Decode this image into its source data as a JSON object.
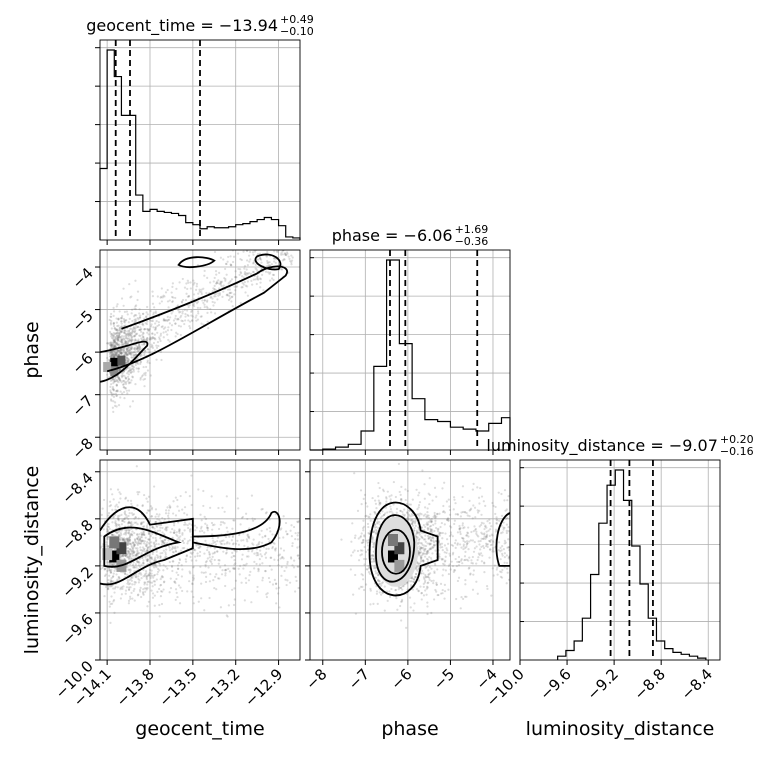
{
  "chart_data": {
    "type": "corner",
    "parameters": [
      "geocent_time",
      "phase",
      "luminosity_distance"
    ],
    "titles": {
      "geocent_time": {
        "prefix": "geocent_time = ",
        "median": "−13.94",
        "upper": "+0.49",
        "lower": "−0.10"
      },
      "phase": {
        "prefix": "phase = ",
        "median": "−6.06",
        "upper": "+1.69",
        "lower": "−0.36"
      },
      "luminosity_distance": {
        "prefix": "luminosity_distance = ",
        "median": "−9.07",
        "upper": "+0.20",
        "lower": "−0.16"
      }
    },
    "axes": {
      "geocent_time": {
        "label": "geocent_time",
        "range": [
          -14.15,
          -12.75
        ],
        "ticks": [
          -14.1,
          -13.8,
          -13.5,
          -13.2,
          -12.9
        ],
        "tick_labels": [
          "−14.1",
          "−13.8",
          "−13.5",
          "−13.2",
          "−12.9"
        ]
      },
      "phase": {
        "label": "phase",
        "range": [
          -8.3,
          -3.6
        ],
        "ticks": [
          -8,
          -7,
          -6,
          -5,
          -4
        ],
        "tick_labels": [
          "−8",
          "−7",
          "−6",
          "−5",
          "−4"
        ]
      },
      "luminosity_distance": {
        "label": "luminosity_distance",
        "range": [
          -10.0,
          -8.3
        ],
        "ticks": [
          -10.0,
          -9.6,
          -9.2,
          -8.8,
          -8.4
        ],
        "tick_labels": [
          "−10.0",
          "−9.6",
          "−9.2",
          "−8.8",
          "−8.4"
        ]
      }
    },
    "quantiles": {
      "geocent_time": [
        -14.04,
        -13.94,
        -13.45
      ],
      "phase": [
        -6.42,
        -6.06,
        -4.37
      ],
      "luminosity_distance": [
        -9.23,
        -9.07,
        -8.87
      ]
    },
    "histograms": {
      "geocent_time": {
        "edges": [
          -14.15,
          -14.1,
          -14.05,
          -14.0,
          -13.95,
          -13.9,
          -13.85,
          -13.8,
          -13.75,
          -13.7,
          -13.65,
          -13.6,
          -13.55,
          -13.5,
          -13.45,
          -13.4,
          -13.35,
          -13.3,
          -13.25,
          -13.2,
          -13.15,
          -13.1,
          -13.05,
          -13.0,
          -12.95,
          -12.9,
          -12.85,
          -12.8,
          -12.75
        ],
        "counts": [
          0.35,
          0.93,
          0.8,
          0.61,
          0.61,
          0.22,
          0.14,
          0.15,
          0.14,
          0.135,
          0.13,
          0.12,
          0.085,
          0.075,
          0.055,
          0.065,
          0.06,
          0.06,
          0.065,
          0.075,
          0.08,
          0.09,
          0.1,
          0.11,
          0.1,
          0.07,
          0.015,
          0.01
        ]
      },
      "phase": {
        "edges": [
          -8.3,
          -8.0,
          -7.7,
          -7.4,
          -7.1,
          -6.8,
          -6.5,
          -6.2,
          -5.9,
          -5.6,
          -5.3,
          -5.0,
          -4.7,
          -4.4,
          -4.1,
          -3.8,
          -3.6
        ],
        "counts": [
          0.0,
          0.005,
          0.015,
          0.03,
          0.1,
          0.44,
          1.0,
          0.56,
          0.27,
          0.16,
          0.15,
          0.12,
          0.11,
          0.1,
          0.14,
          0.17
        ]
      },
      "luminosity_distance": {
        "edges": [
          -9.68,
          -9.61,
          -9.54,
          -9.47,
          -9.4,
          -9.33,
          -9.26,
          -9.19,
          -9.12,
          -9.05,
          -8.98,
          -8.91,
          -8.84,
          -8.77,
          -8.7,
          -8.63,
          -8.56,
          -8.49,
          -8.42
        ],
        "counts": [
          0.02,
          0.05,
          0.1,
          0.22,
          0.45,
          0.72,
          0.92,
          1.0,
          0.84,
          0.6,
          0.4,
          0.22,
          0.1,
          0.06,
          0.04,
          0.03,
          0.02,
          0.01
        ]
      }
    },
    "grid": true,
    "tick_rotation": 45
  }
}
